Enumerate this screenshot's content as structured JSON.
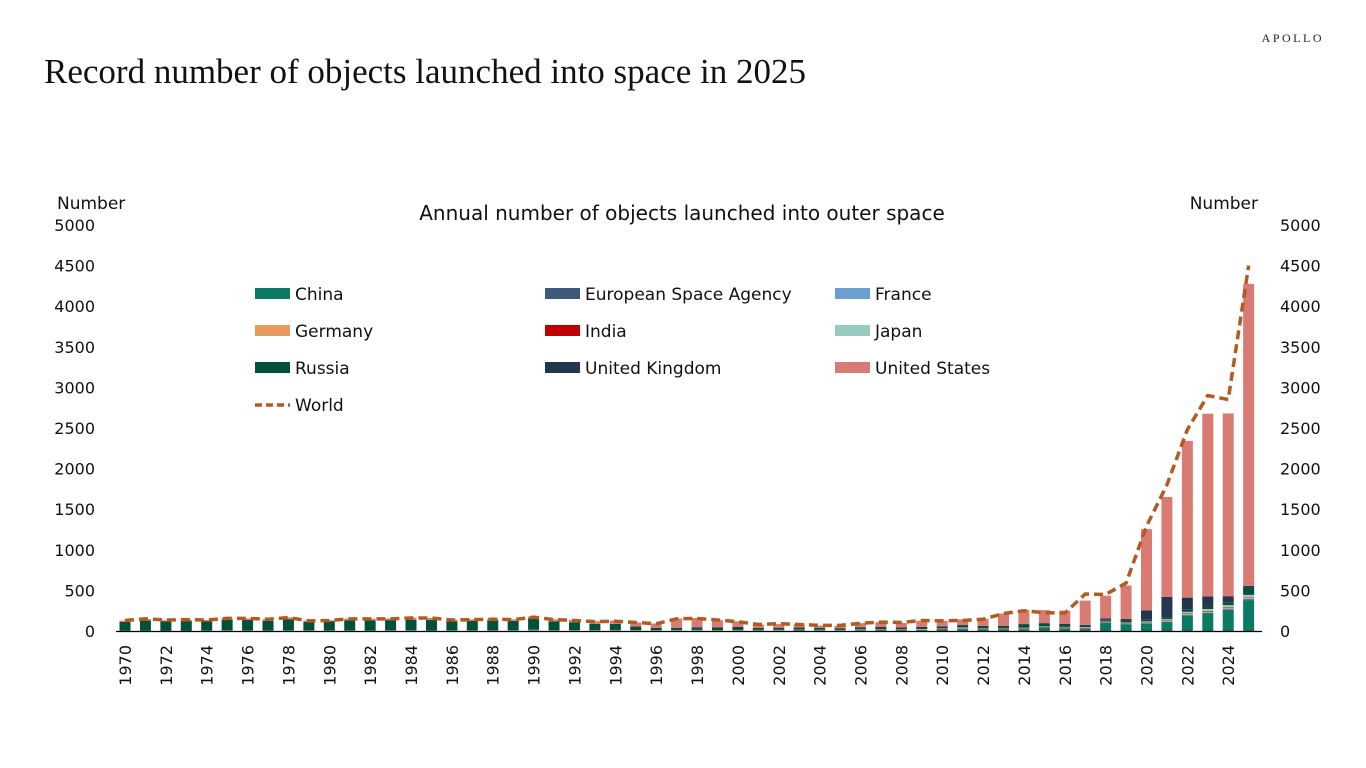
{
  "page": {
    "title": "Record number of objects launched into space in 2025",
    "logo": "APOLLO"
  },
  "chart_data": {
    "type": "bar",
    "stacked": true,
    "title": "Annual number of objects launched into outer space",
    "ylabel_left": "Number",
    "ylabel_right": "Number",
    "ylim": [
      0,
      5000
    ],
    "yticks": [
      0,
      500,
      1000,
      1500,
      2000,
      2500,
      3000,
      3500,
      4000,
      4500,
      5000
    ],
    "x_start": 1970,
    "x_end": 2025,
    "xtick_step": 2,
    "grid": false,
    "legend_position": "top-left, inside, 3 columns",
    "series": [
      {
        "name": "China",
        "color": "#0b7a64",
        "values": [
          0,
          0,
          0,
          0,
          0,
          0,
          0,
          0,
          0,
          0,
          0,
          0,
          0,
          0,
          0,
          0,
          0,
          0,
          0,
          0,
          5,
          0,
          3,
          2,
          5,
          2,
          3,
          5,
          5,
          3,
          5,
          5,
          3,
          8,
          8,
          5,
          8,
          10,
          10,
          10,
          15,
          20,
          20,
          15,
          20,
          40,
          30,
          20,
          100,
          80,
          90,
          110,
          190,
          220,
          260,
          380
        ]
      },
      {
        "name": "European Space Agency",
        "color": "#3d5a7a",
        "values": [
          0,
          0,
          0,
          0,
          0,
          1,
          1,
          1,
          2,
          2,
          2,
          2,
          2,
          3,
          3,
          2,
          2,
          2,
          3,
          3,
          3,
          2,
          2,
          2,
          2,
          2,
          3,
          3,
          3,
          3,
          3,
          2,
          3,
          3,
          2,
          2,
          3,
          3,
          3,
          3,
          3,
          3,
          3,
          3,
          4,
          4,
          4,
          5,
          5,
          5,
          5,
          5,
          6,
          6,
          8,
          8
        ]
      },
      {
        "name": "France",
        "color": "#6a9fd0",
        "values": [
          2,
          1,
          1,
          1,
          2,
          2,
          1,
          1,
          1,
          1,
          1,
          1,
          1,
          1,
          1,
          1,
          2,
          2,
          2,
          2,
          2,
          2,
          2,
          2,
          2,
          2,
          2,
          2,
          2,
          2,
          2,
          2,
          2,
          2,
          2,
          2,
          3,
          3,
          3,
          3,
          3,
          15,
          3,
          3,
          3,
          3,
          3,
          4,
          4,
          4,
          4,
          5,
          5,
          5,
          8,
          10
        ]
      },
      {
        "name": "Germany",
        "color": "#e89a5e",
        "values": [
          0,
          0,
          0,
          0,
          1,
          1,
          1,
          0,
          0,
          0,
          0,
          0,
          0,
          0,
          0,
          0,
          0,
          0,
          0,
          0,
          2,
          2,
          1,
          1,
          1,
          1,
          1,
          1,
          1,
          1,
          1,
          2,
          2,
          2,
          2,
          2,
          2,
          3,
          3,
          3,
          3,
          3,
          3,
          3,
          3,
          3,
          3,
          5,
          5,
          5,
          6,
          8,
          10,
          10,
          10,
          12
        ]
      },
      {
        "name": "India",
        "color": "#c00000",
        "values": [
          0,
          0,
          0,
          0,
          0,
          1,
          0,
          0,
          0,
          1,
          1,
          1,
          0,
          1,
          0,
          0,
          0,
          1,
          1,
          0,
          0,
          0,
          0,
          0,
          1,
          0,
          1,
          0,
          0,
          1,
          0,
          1,
          0,
          1,
          0,
          0,
          0,
          2,
          2,
          0,
          2,
          2,
          2,
          2,
          2,
          2,
          3,
          3,
          3,
          3,
          2,
          3,
          5,
          5,
          3,
          5
        ]
      },
      {
        "name": "Japan",
        "color": "#98cbbf",
        "values": [
          1,
          2,
          1,
          1,
          3,
          3,
          3,
          3,
          4,
          4,
          3,
          3,
          3,
          4,
          4,
          2,
          3,
          3,
          3,
          3,
          3,
          2,
          2,
          2,
          2,
          3,
          2,
          2,
          3,
          2,
          2,
          2,
          4,
          2,
          2,
          2,
          4,
          2,
          2,
          5,
          5,
          3,
          5,
          5,
          8,
          5,
          8,
          10,
          8,
          8,
          12,
          15,
          20,
          25,
          30,
          30
        ]
      },
      {
        "name": "Russia",
        "color": "#00503c",
        "values": [
          110,
          125,
          115,
          120,
          115,
          130,
          130,
          120,
          135,
          105,
          110,
          125,
          125,
          125,
          130,
          130,
          110,
          115,
          120,
          115,
          140,
          110,
          95,
          80,
          75,
          45,
          25,
          25,
          30,
          30,
          35,
          25,
          25,
          22,
          20,
          20,
          25,
          25,
          20,
          25,
          22,
          25,
          25,
          30,
          40,
          35,
          30,
          20,
          20,
          25,
          20,
          25,
          25,
          25,
          30,
          90
        ]
      },
      {
        "name": "United Kingdom",
        "color": "#233650",
        "values": [
          0,
          0,
          0,
          0,
          0,
          0,
          0,
          0,
          0,
          0,
          0,
          0,
          0,
          0,
          0,
          0,
          0,
          0,
          0,
          0,
          0,
          0,
          0,
          0,
          0,
          0,
          0,
          1,
          1,
          1,
          1,
          0,
          1,
          2,
          1,
          1,
          1,
          1,
          1,
          1,
          2,
          2,
          3,
          4,
          5,
          5,
          5,
          8,
          10,
          20,
          115,
          250,
          150,
          130,
          80,
          20
        ]
      },
      {
        "name": "United States",
        "color": "#d97a73",
        "values": [
          15,
          20,
          15,
          15,
          15,
          20,
          20,
          20,
          25,
          15,
          15,
          20,
          20,
          20,
          25,
          25,
          20,
          20,
          20,
          20,
          25,
          25,
          30,
          30,
          40,
          50,
          55,
          115,
          115,
          90,
          70,
          40,
          45,
          40,
          30,
          30,
          50,
          60,
          55,
          75,
          70,
          70,
          85,
          150,
          175,
          160,
          165,
          300,
          280,
          410,
          1000,
          1230,
          1930,
          2250,
          2250,
          3720
        ]
      }
    ],
    "line_series": {
      "name": "World",
      "color": "#b35a1f",
      "style": "dashed",
      "values": [
        130,
        150,
        135,
        140,
        135,
        155,
        155,
        145,
        165,
        125,
        130,
        150,
        150,
        150,
        160,
        160,
        135,
        140,
        145,
        140,
        170,
        140,
        130,
        115,
        120,
        105,
        90,
        150,
        155,
        135,
        115,
        80,
        90,
        80,
        70,
        70,
        95,
        110,
        105,
        130,
        125,
        130,
        145,
        215,
        250,
        225,
        220,
        455,
        450,
        590,
        1290,
        1800,
        2480,
        2900,
        2850,
        4500
      ]
    }
  }
}
